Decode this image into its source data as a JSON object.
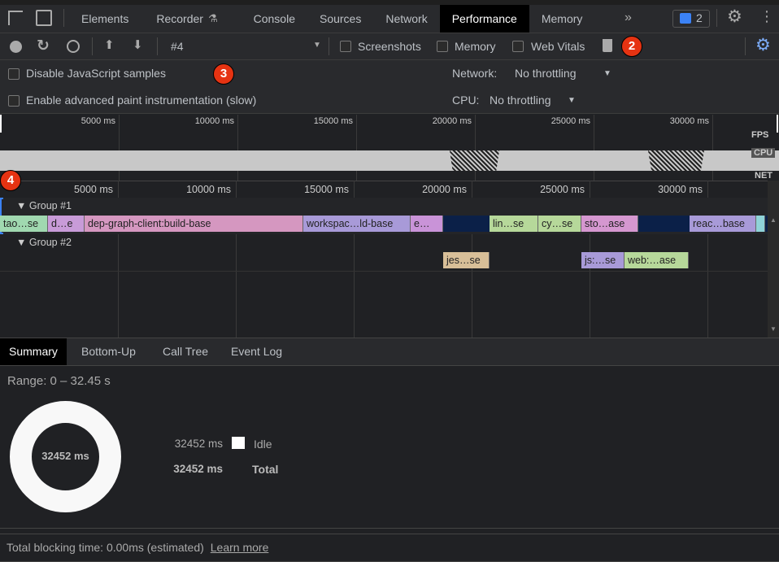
{
  "tabs": [
    "Elements",
    "Recorder",
    "Console",
    "Sources",
    "Network",
    "Performance",
    "Memory"
  ],
  "active_tab": "Performance",
  "issues_count": "2",
  "toolbar": {
    "recording": "#4",
    "screenshots": "Screenshots",
    "memory": "Memory",
    "web_vitals": "Web Vitals"
  },
  "options": {
    "disable_js": "Disable JavaScript samples",
    "adv_paint": "Enable advanced paint instrumentation (slow)",
    "network_label": "Network:",
    "network_value": "No throttling",
    "cpu_label": "CPU:",
    "cpu_value": "No throttling"
  },
  "badges": [
    "2",
    "3",
    "4"
  ],
  "overview": {
    "ticks": [
      "5000 ms",
      "10000 ms",
      "15000 ms",
      "20000 ms",
      "25000 ms",
      "30000 ms"
    ],
    "lanes": [
      "FPS",
      "CPU",
      "NET"
    ]
  },
  "timeline": {
    "ticks": [
      "5000 ms",
      "10000 ms",
      "15000 ms",
      "20000 ms",
      "25000 ms",
      "30000 ms"
    ],
    "groups": [
      "Group #1",
      "Group #2"
    ],
    "group1": [
      {
        "label": "tao…se",
        "start": 0,
        "end": 2030,
        "color": "#a0d8b0"
      },
      {
        "label": "d…e",
        "start": 2030,
        "end": 3590,
        "color": "#c89bd8"
      },
      {
        "label": "dep-graph-client:build-base",
        "start": 3590,
        "end": 12860,
        "color": "#d597c0"
      },
      {
        "label": "workspac…ld-base",
        "start": 12860,
        "end": 17410,
        "color": "#a89ad8"
      },
      {
        "label": "e…",
        "start": 17410,
        "end": 18790,
        "color": "#c993d8"
      },
      {
        "label": "lin…se",
        "start": 20760,
        "end": 22830,
        "color": "#b6d89a"
      },
      {
        "label": "cy…se",
        "start": 22830,
        "end": 24660,
        "color": "#b6d89a"
      },
      {
        "label": "sto…ase",
        "start": 24660,
        "end": 27070,
        "color": "#d597d0"
      },
      {
        "label": "reac…base",
        "start": 29240,
        "end": 32070,
        "color": "#a89ad8"
      },
      {
        "label": "",
        "start": 32070,
        "end": 32452,
        "color": "#8fd3d8"
      }
    ],
    "group2": [
      {
        "label": "jes…se",
        "start": 18790,
        "end": 20760,
        "color": "#d8bf98"
      },
      {
        "label": "js:…se",
        "start": 24660,
        "end": 26480,
        "color": "#a89ad8"
      },
      {
        "label": "web:…ase",
        "start": 26480,
        "end": 29210,
        "color": "#b6d89a"
      }
    ]
  },
  "bottom_tabs": [
    "Summary",
    "Bottom-Up",
    "Call Tree",
    "Event Log"
  ],
  "summary": {
    "range": "Range: 0 – 32.45 s",
    "donut_center": "32452 ms",
    "idle_value": "32452 ms",
    "idle_label": "Idle",
    "total_value": "32452 ms",
    "total_label": "Total"
  },
  "footer": {
    "text": "Total blocking time: 0.00ms (estimated)",
    "link": "Learn more"
  }
}
